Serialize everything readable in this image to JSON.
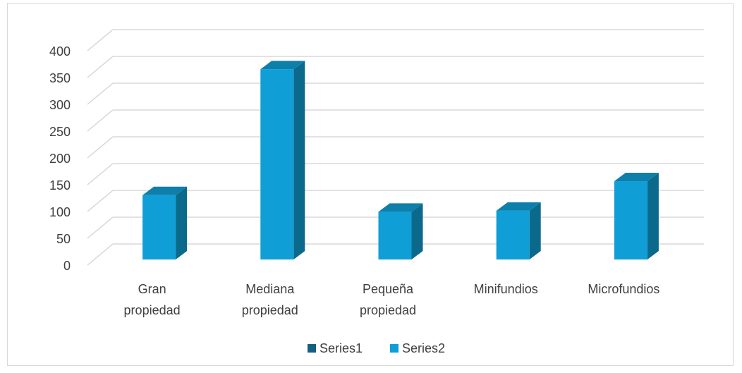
{
  "chart_data": {
    "type": "bar",
    "style": "3d-column",
    "categories": [
      [
        "Gran",
        "propiedad"
      ],
      [
        "Mediana",
        "propiedad"
      ],
      [
        "Pequeña",
        "propiedad"
      ],
      [
        "Minifundios"
      ],
      [
        "Microfundios"
      ]
    ],
    "series": [
      {
        "name": "Series1",
        "values": [
          0,
          0,
          0,
          0,
          0
        ],
        "color": "#156082"
      },
      {
        "name": "Series2",
        "values": [
          120,
          355,
          89,
          91,
          146
        ],
        "color": "#0F9ED5"
      }
    ],
    "ylim": [
      0,
      400
    ],
    "yticks": [
      0,
      50,
      100,
      150,
      200,
      250,
      300,
      350,
      400
    ],
    "grid": true,
    "legend": "bottom",
    "colors": {
      "gridline": "#d9d9d9",
      "text": "#404040",
      "bar_side": "#0b6a8c",
      "bar_top": "#0e7fab"
    }
  }
}
